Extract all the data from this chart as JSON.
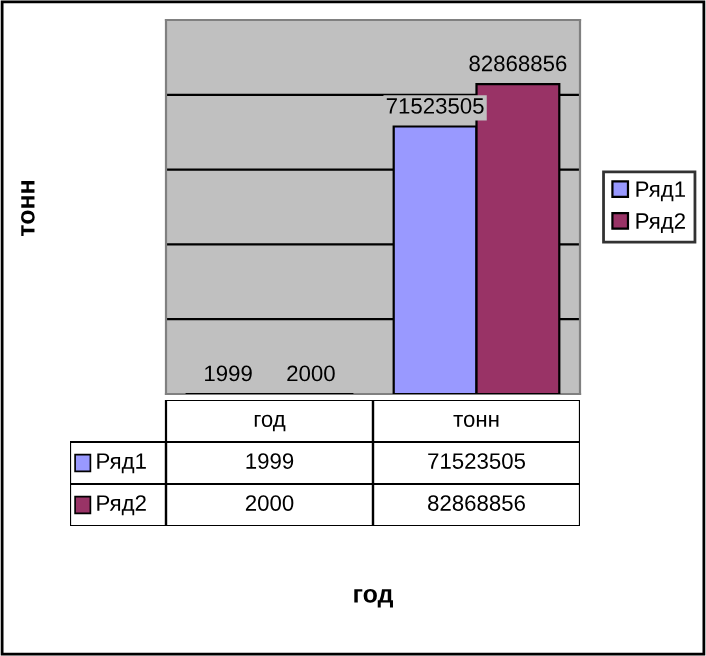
{
  "chart_data": {
    "type": "bar",
    "annotations": [
      "тонн",
      "год"
    ],
    "categories": [
      "год",
      "тонн"
    ],
    "series": [
      {
        "name": "Ряд1",
        "color": "#9999ff",
        "values": [
          1999,
          71523505
        ],
        "value_labels": [
          "1999",
          "71523505"
        ]
      },
      {
        "name": "Ряд2",
        "color": "#993366",
        "values": [
          2000,
          82868856
        ],
        "value_labels": [
          "2000",
          "82868856"
        ]
      }
    ],
    "ylim": [
      0,
      100000000
    ],
    "yticks": [
      {
        "value": 0,
        "label": null
      },
      {
        "value": 20000000,
        "label": null
      },
      {
        "value": 40000000,
        "label": null
      },
      {
        "value": 60000000,
        "label": null
      },
      {
        "value": 80000000,
        "label": null
      },
      {
        "value": 100000000,
        "label": null
      }
    ],
    "grid": "y",
    "legend": "right",
    "tick_labels": false
  }
}
